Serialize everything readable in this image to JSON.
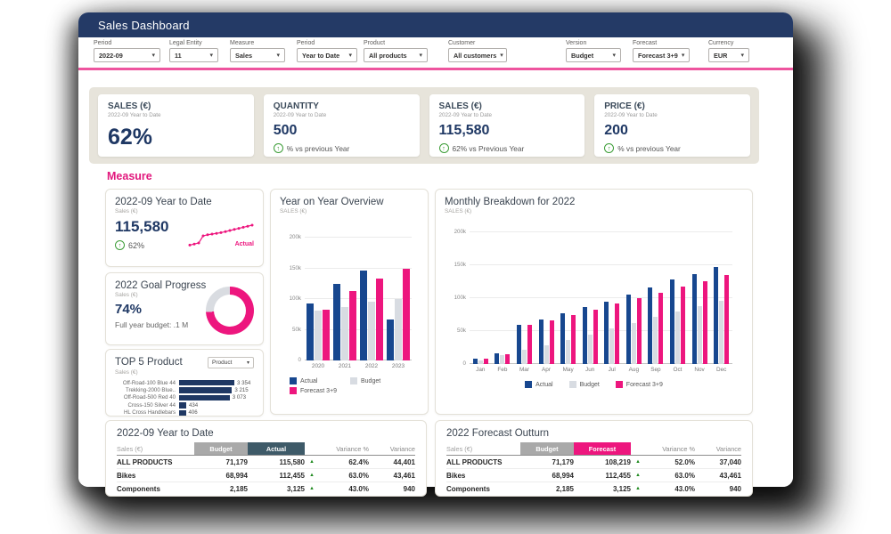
{
  "window": {
    "title": "Sales Dashboard"
  },
  "icons": {
    "up_arrow": "↑",
    "chevron_down": "▾",
    "triangle_up": "▲"
  },
  "colors": {
    "titlebar": "#243A66",
    "accent_line": "#EE549E",
    "navy_text": "#1F3864",
    "bar_navy": "#17478F",
    "pink": "#ED167E",
    "bar_gray": "#D8DCE2",
    "green": "#3C9D37",
    "band": "#E7E4DB",
    "chip_gray": "#A9A9A9",
    "chip_dark": "#3E5A68",
    "donut_track": "#D9DCE1"
  },
  "filters": [
    {
      "label": "Period",
      "value": "2022-09"
    },
    {
      "label": "Legal Entity",
      "value": "11"
    },
    {
      "label": "Measure",
      "value": "Sales"
    },
    {
      "label": "Period",
      "value": "Year to Date"
    },
    {
      "label": "Product",
      "value": "All products"
    },
    {
      "label": "Customer",
      "value": "All customers"
    },
    {
      "label": "Version",
      "value": "Budget"
    },
    {
      "label": "Forecast",
      "value": "Forecast 3+9"
    },
    {
      "label": "Currency",
      "value": "EUR"
    }
  ],
  "kpis": [
    {
      "title": "SALES (€)",
      "subtitle": "2022-09 Year to Date",
      "value": "62%"
    },
    {
      "title": "QUANTITY",
      "subtitle": "2022-09 Year to Date",
      "value": "500",
      "delta": "% vs previous Year"
    },
    {
      "title": "SALES (€)",
      "subtitle": "2022-09 Year to Date",
      "value": "115,580",
      "delta": "62% vs Previous Year"
    },
    {
      "title": "PRICE (€)",
      "subtitle": "2022-09 Year to Date",
      "value": "200",
      "delta": "% vs previous Year"
    }
  ],
  "section_label": "Measure",
  "cards": {
    "ytd": {
      "title": "2022-09 Year to Date",
      "subtitle": "Sales (€)",
      "value": "115,580",
      "delta": "62%",
      "line_label": "Actual"
    },
    "goal": {
      "title": "2022 Goal Progress",
      "subtitle": "Sales (€)",
      "value": "74%",
      "note": "Full year budget: .1 M"
    },
    "top5": {
      "title": "TOP 5 Product",
      "dropdown_value": "Product",
      "subtitle": "Sales (€)"
    },
    "yoy": {
      "title": "Year on Year Overview",
      "subtitle": "SALES (€)"
    },
    "monthly": {
      "title": "Monthly Breakdown for 2022",
      "subtitle": "SALES (€)"
    }
  },
  "chart_data": [
    {
      "id": "ytd_sparkline",
      "type": "line",
      "series_label": "Actual",
      "values": [
        14,
        17,
        20,
        40,
        43,
        45,
        47,
        49,
        52,
        55,
        58,
        61,
        64,
        67,
        70
      ]
    },
    {
      "id": "goal_donut",
      "type": "pie",
      "title": "2022 Goal Progress",
      "slices": [
        {
          "label": "Achieved",
          "value": 74
        },
        {
          "label": "Remaining",
          "value": 26
        }
      ]
    },
    {
      "id": "top5",
      "type": "bar",
      "orientation": "horizontal",
      "title": "TOP 5 Product",
      "ylabel": "Sales (€)",
      "categories": [
        "Off-Road-100 Blue 44",
        "Trekking-2000 Blue..",
        "Off-Road-500 Red 40",
        "Cross-150 Silver 44",
        "HL Cross Handlebars"
      ],
      "values": [
        3354,
        3215,
        3073,
        434,
        406
      ],
      "value_labels": [
        "3 354",
        "3 215",
        "3 073",
        "434",
        "406"
      ]
    },
    {
      "id": "yoy",
      "type": "bar",
      "title": "Year on Year Overview",
      "ylabel": "SALES (€)",
      "categories": [
        "2020",
        "2021",
        "2022",
        "2023"
      ],
      "yticks": [
        "0",
        "50k",
        "100k",
        "150k",
        "200k"
      ],
      "ylim": [
        0,
        200000
      ],
      "legend_position": "bottom",
      "series": [
        {
          "name": "Actual",
          "color": "navy",
          "values": [
            93000,
            125000,
            147000,
            66000
          ]
        },
        {
          "name": "Budget",
          "color": "gray",
          "values": [
            81000,
            87000,
            95000,
            100000
          ]
        },
        {
          "name": "Forecast 3+9",
          "color": "pink",
          "values": [
            82000,
            113000,
            134000,
            149000
          ]
        }
      ]
    },
    {
      "id": "monthly",
      "type": "bar",
      "title": "Monthly Breakdown for 2022",
      "ylabel": "SALES (€)",
      "categories": [
        "Jan",
        "Feb",
        "Mar",
        "Apr",
        "May",
        "Jun",
        "Jul",
        "Aug",
        "Sep",
        "Oct",
        "Nov",
        "Dec"
      ],
      "yticks": [
        "0",
        "50k",
        "100k",
        "150k",
        "200k"
      ],
      "ylim": [
        0,
        200000
      ],
      "legend_position": "bottom",
      "series": [
        {
          "name": "Actual",
          "color": "navy",
          "values": [
            8000,
            16000,
            59000,
            68000,
            77000,
            86000,
            95000,
            105000,
            116000,
            128000,
            136000,
            147000
          ]
        },
        {
          "name": "Budget",
          "color": "gray",
          "values": [
            6000,
            13000,
            21000,
            29000,
            37000,
            45000,
            54000,
            62000,
            71000,
            80000,
            88000,
            96000
          ]
        },
        {
          "name": "Forecast 3+9",
          "color": "pink",
          "values": [
            8000,
            15000,
            59000,
            66000,
            75000,
            83000,
            92000,
            100000,
            108000,
            117000,
            126000,
            135000
          ]
        }
      ]
    }
  ],
  "tables": [
    {
      "title": "2022-09 Year to Date",
      "label": "Sales (€)",
      "columns": {
        "col1": "Budget",
        "col2": "Actual",
        "col3": "Variance %",
        "col4": "Variance"
      },
      "col2_style": "dark",
      "rows": [
        {
          "name": "ALL PRODUCTS",
          "col1": "71,179",
          "col2": "115,580",
          "arrow": "▲",
          "col3": "62.4%",
          "col4": "44,401"
        },
        {
          "name": "Bikes",
          "col1": "68,994",
          "col2": "112,455",
          "arrow": "▲",
          "col3": "63.0%",
          "col4": "43,461"
        },
        {
          "name": "Components",
          "col1": "2,185",
          "col2": "3,125",
          "arrow": "▲",
          "col3": "43.0%",
          "col4": "940"
        }
      ]
    },
    {
      "title": "2022 Forecast Outturn",
      "label": "Sales (€)",
      "columns": {
        "col1": "Budget",
        "col2": "Forecast",
        "col3": "Variance %",
        "col4": "Variance"
      },
      "col2_style": "pink",
      "rows": [
        {
          "name": "ALL PRODUCTS",
          "col1": "71,179",
          "col2": "108,219",
          "arrow": "▲",
          "col3": "52.0%",
          "col4": "37,040"
        },
        {
          "name": "Bikes",
          "col1": "68,994",
          "col2": "112,455",
          "arrow": "▲",
          "col3": "63.0%",
          "col4": "43,461"
        },
        {
          "name": "Components",
          "col1": "2,185",
          "col2": "3,125",
          "arrow": "▲",
          "col3": "43.0%",
          "col4": "940"
        }
      ]
    }
  ]
}
